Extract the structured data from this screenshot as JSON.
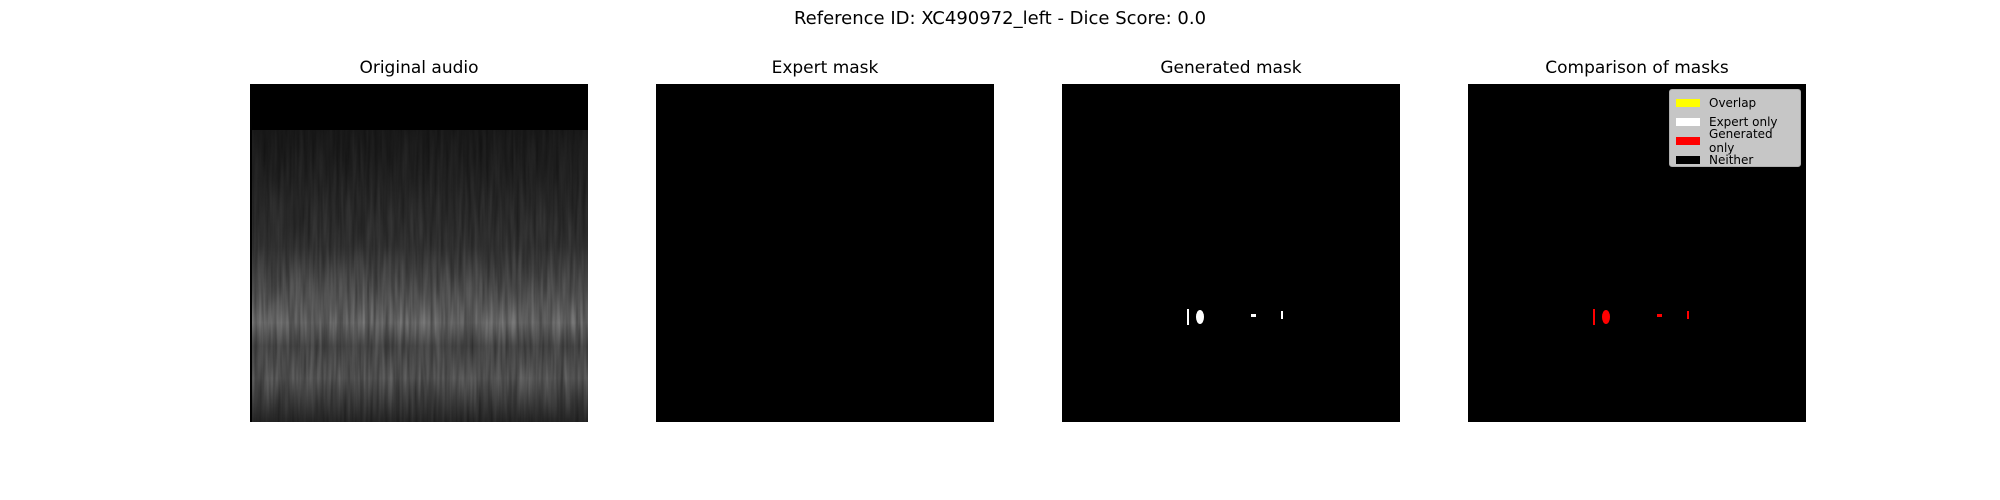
{
  "figure": {
    "title": "Reference ID: XC490972_left - Dice Score: 0.0"
  },
  "panels": [
    {
      "title": "Original audio"
    },
    {
      "title": "Expert mask"
    },
    {
      "title": "Generated mask"
    },
    {
      "title": "Comparison of masks"
    }
  ],
  "legend": {
    "items": [
      {
        "label": "Overlap",
        "color": "#ffff00"
      },
      {
        "label": "Expert only",
        "color": "#ffffff"
      },
      {
        "label": "Generated only",
        "color": "#ff0000"
      },
      {
        "label": "Neither",
        "color": "#000000"
      }
    ]
  },
  "colors": {
    "background": "#ffffff",
    "image_background": "#000000",
    "mask": "#ffffff",
    "generated_only": "#ff0000"
  }
}
